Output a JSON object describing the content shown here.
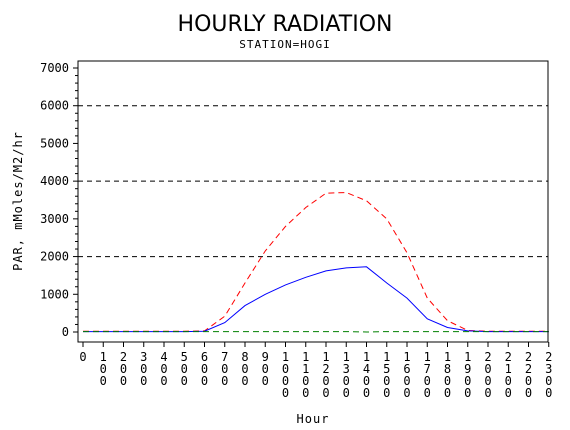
{
  "chart_data": {
    "type": "line",
    "title": "HOURLY RADIATION",
    "subtitle": "STATION=HOGI",
    "xlabel": "Hour",
    "ylabel": "PAR, mMoles/M2/hr",
    "ylim": [
      0,
      7000
    ],
    "yticks": [
      "0",
      "1000",
      "2000",
      "3000",
      "4000",
      "5000",
      "6000",
      "7000"
    ],
    "xtick_labels": [
      "0",
      "100",
      "200",
      "300",
      "400",
      "500",
      "600",
      "700",
      "800",
      "900",
      "1000",
      "1100",
      "1200",
      "1300",
      "1400",
      "1500",
      "1600",
      "1700",
      "1800",
      "1900",
      "2000",
      "2100",
      "2200",
      "2300"
    ],
    "x": [
      0,
      100,
      200,
      300,
      400,
      500,
      600,
      700,
      800,
      900,
      1000,
      1100,
      1200,
      1300,
      1400,
      1500,
      1600,
      1700,
      1800,
      1900,
      2000,
      2100,
      2200,
      2300
    ],
    "reference_lines": [
      2000,
      4000,
      6000
    ],
    "series": [
      {
        "color": "#ff0000",
        "style": "dashed",
        "values": [
          20,
          20,
          20,
          20,
          20,
          20,
          30,
          420,
          1300,
          2150,
          2800,
          3300,
          3680,
          3700,
          3480,
          3000,
          2100,
          900,
          300,
          40,
          20,
          20,
          20,
          20
        ]
      },
      {
        "color": "#0000ff",
        "style": "solid",
        "values": [
          10,
          10,
          10,
          10,
          10,
          10,
          20,
          250,
          700,
          1000,
          1250,
          1450,
          1620,
          1700,
          1730,
          1300,
          900,
          350,
          120,
          30,
          10,
          10,
          10,
          10
        ]
      },
      {
        "color": "#008000",
        "style": "dashed",
        "values": [
          10,
          10,
          10,
          10,
          10,
          10,
          10,
          10,
          10,
          10,
          10,
          10,
          10,
          10,
          0,
          10,
          10,
          10,
          10,
          10,
          10,
          10,
          10,
          10
        ]
      }
    ],
    "grid": false
  }
}
